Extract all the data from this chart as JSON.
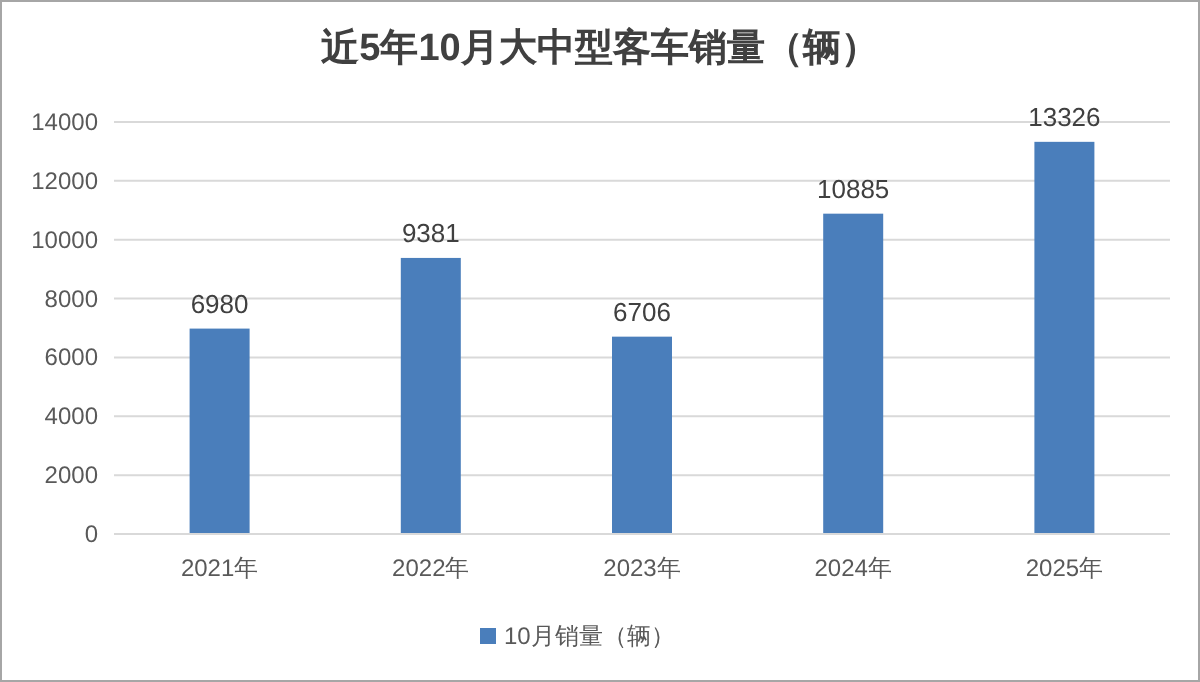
{
  "chart_data": {
    "type": "bar",
    "title": "近5年10月大中型客车销量（辆）",
    "categories": [
      "2021年",
      "2022年",
      "2023年",
      "2024年",
      "2025年"
    ],
    "series": [
      {
        "name": "10月销量（辆）",
        "color": "#4a7ebb",
        "values": [
          6980,
          9381,
          6706,
          10885,
          13326
        ]
      }
    ],
    "ylim": [
      0,
      14000
    ],
    "yticks": [
      0,
      2000,
      4000,
      6000,
      8000,
      10000,
      12000,
      14000
    ],
    "grid": "y",
    "legend": "bottom",
    "data_labels": true
  }
}
